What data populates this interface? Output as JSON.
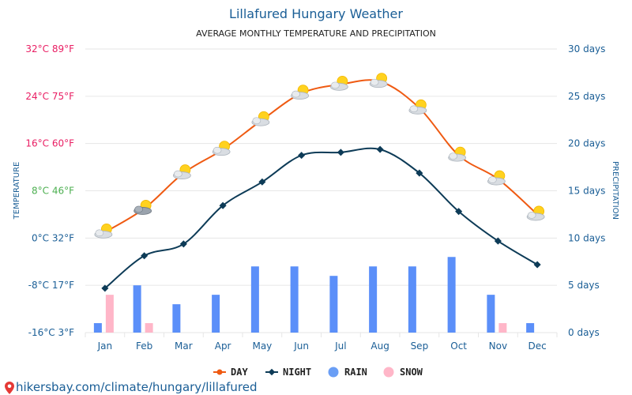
{
  "chart_data": {
    "type": "line",
    "title": "Lillafured Hungary Weather",
    "subtitle": "AVERAGE MONTHLY TEMPERATURE AND PRECIPITATION",
    "ylabel_left": "TEMPERATURE",
    "ylabel_right": "PRECIPITATION",
    "categories": [
      "Jan",
      "Feb",
      "Mar",
      "Apr",
      "May",
      "Jun",
      "Jul",
      "Aug",
      "Sep",
      "Oct",
      "Nov",
      "Dec"
    ],
    "temp_ticks": [
      {
        "c": -16,
        "label": "-16°C 3°F",
        "color": "#1a5e96"
      },
      {
        "c": -8,
        "label": "-8°C 17°F",
        "color": "#1a5e96"
      },
      {
        "c": 0,
        "label": "0°C 32°F",
        "color": "#1a5e96"
      },
      {
        "c": 8,
        "label": "8°C 46°F",
        "color": "#4caf50"
      },
      {
        "c": 16,
        "label": "16°C 60°F",
        "color": "#e91e63"
      },
      {
        "c": 24,
        "label": "24°C 75°F",
        "color": "#e91e63"
      },
      {
        "c": 32,
        "label": "32°C 89°F",
        "color": "#e91e63"
      }
    ],
    "temp_range": [
      -16,
      32
    ],
    "precip_ticks": [
      {
        "v": 0,
        "label": "0 days"
      },
      {
        "v": 5,
        "label": "5 days"
      },
      {
        "v": 10,
        "label": "10 days"
      },
      {
        "v": 15,
        "label": "15 days"
      },
      {
        "v": 20,
        "label": "20 days"
      },
      {
        "v": 25,
        "label": "25 days"
      },
      {
        "v": 30,
        "label": "30 days"
      }
    ],
    "precip_range": [
      0,
      30
    ],
    "series": [
      {
        "name": "DAY",
        "kind": "line",
        "color": "#ef5a12",
        "values": [
          1,
          5,
          11,
          15,
          20,
          24.5,
          26,
          26.5,
          22,
          14,
          10,
          4
        ]
      },
      {
        "name": "NIGHT",
        "kind": "line",
        "color": "#0d3b57",
        "values": [
          -8.5,
          -3,
          -1,
          5.5,
          9.5,
          14,
          14.5,
          15,
          11,
          4.5,
          -0.5,
          -4.5
        ]
      },
      {
        "name": "RAIN",
        "kind": "bar",
        "color": "#5b8ff9",
        "values": [
          1,
          5,
          3,
          4,
          7,
          7,
          6,
          7,
          7,
          8,
          4,
          1
        ]
      },
      {
        "name": "SNOW",
        "kind": "bar",
        "color": "#ffb6c8",
        "values": [
          4,
          1,
          0,
          0,
          0,
          0,
          0,
          0,
          0,
          0,
          1,
          0
        ]
      }
    ],
    "legend": [
      {
        "name": "DAY",
        "color": "#ef5a12",
        "marker": "line"
      },
      {
        "name": "NIGHT",
        "color": "#0d3b57",
        "marker": "line"
      },
      {
        "name": "RAIN",
        "color": "#6a9ef5",
        "marker": "dot"
      },
      {
        "name": "SNOW",
        "color": "#ffb6c8",
        "marker": "dot"
      }
    ]
  },
  "watermark": {
    "text": "hikersbay.com/climate/hungary/lillafured"
  },
  "icons": {
    "weather": "partly-cloudy-icon",
    "pin": "location-pin-icon"
  }
}
